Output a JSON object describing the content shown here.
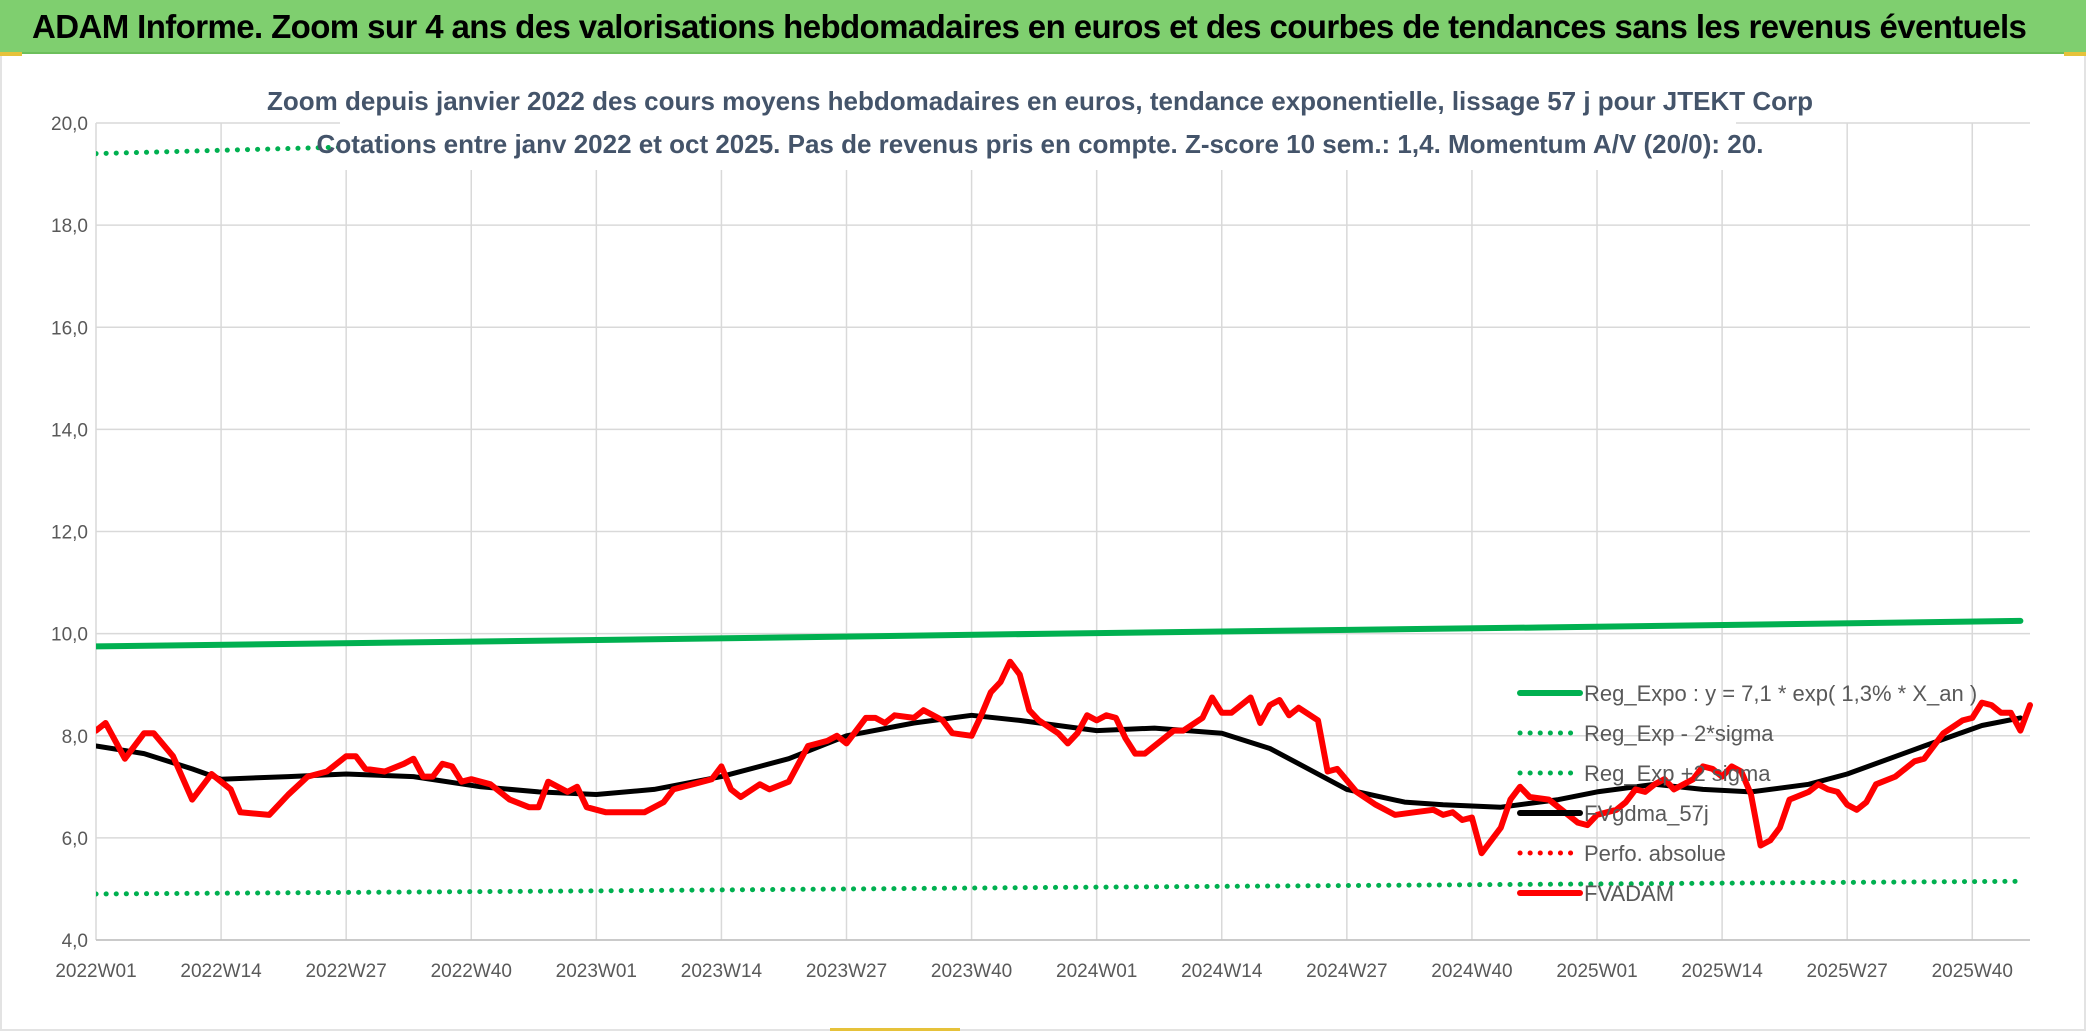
{
  "banner": {
    "title": "ADAM Informe. Zoom sur 4 ans des valorisations hebdomadaires en euros et des courbes de tendances sans les revenus éventuels"
  },
  "colors": {
    "banner_bg": "#7fcf6f",
    "reg_expo": "#00b050",
    "fvgdma": "#000000",
    "fvadam": "#ff0000",
    "perfo": "#ff0000"
  },
  "chart_data": {
    "type": "line",
    "title": "Zoom depuis janvier 2022 des cours moyens hebdomadaires en euros, tendance exponentielle, lissage 57 j pour JTEKT Corp",
    "subtitle": "Cotations entre janv 2022 et oct 2025. Pas de revenus pris en compte. Z-score 10 sem.: 1,4. Momentum A/V (20/0): 20.",
    "xlabel": "",
    "ylabel": "",
    "ylim": [
      4,
      20
    ],
    "y_ticks": [
      "4,0",
      "6,0",
      "8,0",
      "10,0",
      "12,0",
      "14,0",
      "16,0",
      "18,0",
      "20,0"
    ],
    "x_ticks": [
      "2022W01",
      "2022W14",
      "2022W27",
      "2022W40",
      "2023W01",
      "2023W14",
      "2023W27",
      "2023W40",
      "2024W01",
      "2024W14",
      "2024W27",
      "2024W40",
      "2025W01",
      "2025W14",
      "2025W27",
      "2025W40"
    ],
    "x_tick_weeks": [
      0,
      13,
      26,
      39,
      52,
      65,
      78,
      91,
      104,
      117,
      130,
      143,
      156,
      169,
      182,
      195
    ],
    "n_weeks": 201,
    "grid": true,
    "legend_position": "right",
    "series": [
      {
        "name": "Reg_Expo : y = 7,1 * exp( 1,3% *  X_an )",
        "style": "solid",
        "color": "#00b050",
        "points": [
          [
            0,
            9.75
          ],
          [
            50,
            9.87
          ],
          [
            100,
            10.0
          ],
          [
            150,
            10.12
          ],
          [
            200,
            10.25
          ]
        ]
      },
      {
        "name": "Reg_Exp - 2*sigma",
        "style": "dotted",
        "color": "#00b050",
        "points": [
          [
            0,
            4.9
          ],
          [
            50,
            4.96
          ],
          [
            100,
            5.03
          ],
          [
            150,
            5.09
          ],
          [
            200,
            5.15
          ]
        ]
      },
      {
        "name": "Reg_Exp +2 sigma",
        "style": "dotted",
        "color": "#00b050",
        "points": [
          [
            0,
            19.4
          ],
          [
            50,
            19.65
          ],
          [
            100,
            19.9
          ],
          [
            150,
            20.15
          ],
          [
            200,
            20.4
          ]
        ]
      },
      {
        "name": "FVgdma_57j",
        "style": "solid",
        "color": "#000000",
        "points": [
          [
            0,
            7.8
          ],
          [
            5,
            7.65
          ],
          [
            10,
            7.35
          ],
          [
            13,
            7.15
          ],
          [
            20,
            7.2
          ],
          [
            26,
            7.25
          ],
          [
            33,
            7.2
          ],
          [
            40,
            7.0
          ],
          [
            46,
            6.9
          ],
          [
            52,
            6.85
          ],
          [
            58,
            6.95
          ],
          [
            65,
            7.2
          ],
          [
            72,
            7.55
          ],
          [
            78,
            8.0
          ],
          [
            85,
            8.25
          ],
          [
            91,
            8.4
          ],
          [
            96,
            8.3
          ],
          [
            104,
            8.1
          ],
          [
            110,
            8.15
          ],
          [
            117,
            8.05
          ],
          [
            122,
            7.75
          ],
          [
            126,
            7.35
          ],
          [
            130,
            6.95
          ],
          [
            136,
            6.7
          ],
          [
            140,
            6.65
          ],
          [
            146,
            6.6
          ],
          [
            152,
            6.75
          ],
          [
            156,
            6.9
          ],
          [
            162,
            7.05
          ],
          [
            167,
            6.95
          ],
          [
            172,
            6.9
          ],
          [
            178,
            7.05
          ],
          [
            182,
            7.25
          ],
          [
            190,
            7.8
          ],
          [
            196,
            8.2
          ],
          [
            200,
            8.35
          ]
        ]
      },
      {
        "name": "Perfo. absolue",
        "style": "dotted",
        "color": "#ff0000",
        "points": []
      },
      {
        "name": "FVADAM",
        "style": "solid",
        "color": "#ff0000",
        "points": [
          [
            0,
            8.1
          ],
          [
            1,
            8.25
          ],
          [
            3,
            7.55
          ],
          [
            5,
            8.05
          ],
          [
            6,
            8.05
          ],
          [
            8,
            7.6
          ],
          [
            10,
            6.75
          ],
          [
            12,
            7.25
          ],
          [
            14,
            6.95
          ],
          [
            15,
            6.5
          ],
          [
            18,
            6.45
          ],
          [
            20,
            6.85
          ],
          [
            22,
            7.2
          ],
          [
            24,
            7.3
          ],
          [
            26,
            7.6
          ],
          [
            27,
            7.6
          ],
          [
            28,
            7.35
          ],
          [
            30,
            7.3
          ],
          [
            32,
            7.45
          ],
          [
            33,
            7.55
          ],
          [
            34,
            7.2
          ],
          [
            35,
            7.2
          ],
          [
            36,
            7.45
          ],
          [
            37,
            7.4
          ],
          [
            38,
            7.1
          ],
          [
            39,
            7.15
          ],
          [
            41,
            7.05
          ],
          [
            43,
            6.75
          ],
          [
            45,
            6.6
          ],
          [
            46,
            6.6
          ],
          [
            47,
            7.1
          ],
          [
            49,
            6.9
          ],
          [
            50,
            7.0
          ],
          [
            51,
            6.6
          ],
          [
            53,
            6.5
          ],
          [
            55,
            6.5
          ],
          [
            57,
            6.5
          ],
          [
            59,
            6.7
          ],
          [
            60,
            6.95
          ],
          [
            62,
            7.05
          ],
          [
            64,
            7.15
          ],
          [
            65,
            7.4
          ],
          [
            66,
            6.95
          ],
          [
            67,
            6.8
          ],
          [
            69,
            7.05
          ],
          [
            70,
            6.95
          ],
          [
            72,
            7.1
          ],
          [
            74,
            7.8
          ],
          [
            76,
            7.9
          ],
          [
            77,
            8.0
          ],
          [
            78,
            7.85
          ],
          [
            80,
            8.35
          ],
          [
            81,
            8.35
          ],
          [
            82,
            8.25
          ],
          [
            83,
            8.4
          ],
          [
            85,
            8.35
          ],
          [
            86,
            8.5
          ],
          [
            88,
            8.3
          ],
          [
            89,
            8.05
          ],
          [
            91,
            8.0
          ],
          [
            92,
            8.4
          ],
          [
            93,
            8.85
          ],
          [
            94,
            9.05
          ],
          [
            95,
            9.45
          ],
          [
            96,
            9.2
          ],
          [
            97,
            8.5
          ],
          [
            98,
            8.3
          ],
          [
            100,
            8.05
          ],
          [
            101,
            7.85
          ],
          [
            102,
            8.05
          ],
          [
            103,
            8.4
          ],
          [
            104,
            8.3
          ],
          [
            105,
            8.4
          ],
          [
            106,
            8.35
          ],
          [
            107,
            7.95
          ],
          [
            108,
            7.65
          ],
          [
            109,
            7.65
          ],
          [
            110,
            7.8
          ],
          [
            112,
            8.1
          ],
          [
            113,
            8.1
          ],
          [
            115,
            8.35
          ],
          [
            116,
            8.75
          ],
          [
            117,
            8.45
          ],
          [
            118,
            8.45
          ],
          [
            120,
            8.75
          ],
          [
            121,
            8.25
          ],
          [
            122,
            8.6
          ],
          [
            123,
            8.7
          ],
          [
            124,
            8.4
          ],
          [
            125,
            8.55
          ],
          [
            127,
            8.3
          ],
          [
            128,
            7.3
          ],
          [
            129,
            7.35
          ],
          [
            131,
            6.9
          ],
          [
            133,
            6.65
          ],
          [
            135,
            6.45
          ],
          [
            137,
            6.5
          ],
          [
            139,
            6.55
          ],
          [
            140,
            6.45
          ],
          [
            141,
            6.5
          ],
          [
            142,
            6.35
          ],
          [
            143,
            6.4
          ],
          [
            144,
            5.7
          ],
          [
            145,
            5.95
          ],
          [
            146,
            6.2
          ],
          [
            147,
            6.75
          ],
          [
            148,
            7.0
          ],
          [
            149,
            6.8
          ],
          [
            151,
            6.75
          ],
          [
            153,
            6.45
          ],
          [
            154,
            6.3
          ],
          [
            155,
            6.25
          ],
          [
            156,
            6.45
          ],
          [
            158,
            6.55
          ],
          [
            159,
            6.7
          ],
          [
            160,
            6.95
          ],
          [
            161,
            6.9
          ],
          [
            162,
            7.05
          ],
          [
            163,
            7.15
          ],
          [
            164,
            6.95
          ],
          [
            166,
            7.15
          ],
          [
            167,
            7.4
          ],
          [
            168,
            7.35
          ],
          [
            169,
            7.2
          ],
          [
            170,
            7.4
          ],
          [
            171,
            7.3
          ],
          [
            172,
            6.85
          ],
          [
            173,
            5.85
          ],
          [
            174,
            5.95
          ],
          [
            175,
            6.2
          ],
          [
            176,
            6.75
          ],
          [
            178,
            6.9
          ],
          [
            179,
            7.05
          ],
          [
            180,
            6.95
          ],
          [
            181,
            6.9
          ],
          [
            182,
            6.65
          ],
          [
            183,
            6.55
          ],
          [
            184,
            6.7
          ],
          [
            185,
            7.05
          ],
          [
            187,
            7.2
          ],
          [
            189,
            7.5
          ],
          [
            190,
            7.55
          ],
          [
            192,
            8.05
          ],
          [
            194,
            8.3
          ],
          [
            195,
            8.35
          ],
          [
            196,
            8.65
          ],
          [
            197,
            8.6
          ],
          [
            198,
            8.45
          ],
          [
            199,
            8.45
          ],
          [
            200,
            8.1
          ],
          [
            201,
            8.6
          ]
        ]
      }
    ]
  }
}
